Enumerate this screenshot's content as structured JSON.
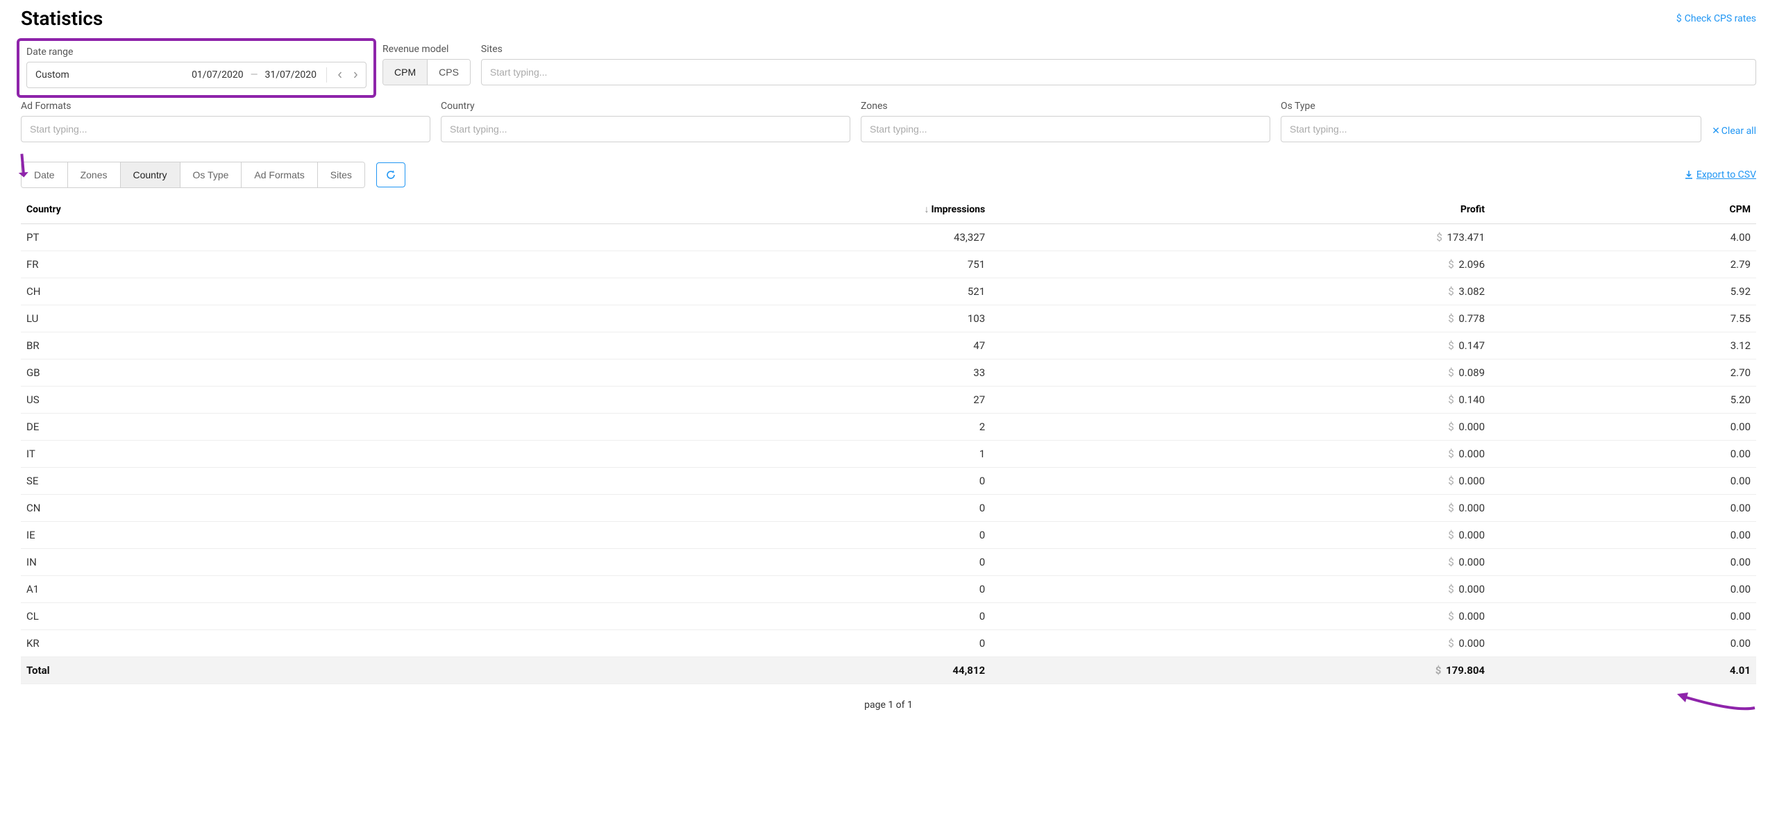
{
  "header": {
    "title": "Statistics",
    "cps_link": "Check CPS rates"
  },
  "filters": {
    "date_range": {
      "label": "Date range",
      "mode": "Custom",
      "start": "01/07/2020",
      "end": "31/07/2020"
    },
    "revenue_model": {
      "label": "Revenue model",
      "options": [
        "CPM",
        "CPS"
      ],
      "selected": "CPM"
    },
    "sites": {
      "label": "Sites",
      "placeholder": "Start typing..."
    },
    "ad_formats": {
      "label": "Ad Formats",
      "placeholder": "Start typing..."
    },
    "country": {
      "label": "Country",
      "placeholder": "Start typing..."
    },
    "zones": {
      "label": "Zones",
      "placeholder": "Start typing..."
    },
    "os_type": {
      "label": "Os Type",
      "placeholder": "Start typing..."
    },
    "clear_all": "Clear all"
  },
  "tabs": {
    "items": [
      "Date",
      "Zones",
      "Country",
      "Os Type",
      "Ad Formats",
      "Sites"
    ],
    "active": "Country"
  },
  "export_csv": "Export to CSV",
  "table": {
    "columns": {
      "country": "Country",
      "impressions": "Impressions",
      "profit": "Profit",
      "cpm": "CPM"
    },
    "sort": {
      "column": "impressions",
      "dir": "desc"
    },
    "currency_symbol": "$",
    "rows": [
      {
        "country": "PT",
        "impressions": "43,327",
        "profit": "173.471",
        "cpm": "4.00"
      },
      {
        "country": "FR",
        "impressions": "751",
        "profit": "2.096",
        "cpm": "2.79"
      },
      {
        "country": "CH",
        "impressions": "521",
        "profit": "3.082",
        "cpm": "5.92"
      },
      {
        "country": "LU",
        "impressions": "103",
        "profit": "0.778",
        "cpm": "7.55"
      },
      {
        "country": "BR",
        "impressions": "47",
        "profit": "0.147",
        "cpm": "3.12"
      },
      {
        "country": "GB",
        "impressions": "33",
        "profit": "0.089",
        "cpm": "2.70"
      },
      {
        "country": "US",
        "impressions": "27",
        "profit": "0.140",
        "cpm": "5.20"
      },
      {
        "country": "DE",
        "impressions": "2",
        "profit": "0.000",
        "cpm": "0.00"
      },
      {
        "country": "IT",
        "impressions": "1",
        "profit": "0.000",
        "cpm": "0.00"
      },
      {
        "country": "SE",
        "impressions": "0",
        "profit": "0.000",
        "cpm": "0.00"
      },
      {
        "country": "CN",
        "impressions": "0",
        "profit": "0.000",
        "cpm": "0.00"
      },
      {
        "country": "IE",
        "impressions": "0",
        "profit": "0.000",
        "cpm": "0.00"
      },
      {
        "country": "IN",
        "impressions": "0",
        "profit": "0.000",
        "cpm": "0.00"
      },
      {
        "country": "A1",
        "impressions": "0",
        "profit": "0.000",
        "cpm": "0.00"
      },
      {
        "country": "CL",
        "impressions": "0",
        "profit": "0.000",
        "cpm": "0.00"
      },
      {
        "country": "KR",
        "impressions": "0",
        "profit": "0.000",
        "cpm": "0.00"
      }
    ],
    "total": {
      "label": "Total",
      "impressions": "44,812",
      "profit": "179.804",
      "cpm": "4.01"
    }
  },
  "pager": {
    "text": "page 1 of 1"
  },
  "colors": {
    "link": "#2196f3",
    "highlight": "#8e24aa",
    "border": "#d0d0d0",
    "row_border": "#eeeeee",
    "total_bg": "#f3f3f3"
  },
  "annotations": {
    "highlight_box": "date-range",
    "arrow1_points_to": "country-label-and-tab",
    "arrow2_points_to": "total-cpm-value",
    "arrow_color": "#8e24aa"
  }
}
